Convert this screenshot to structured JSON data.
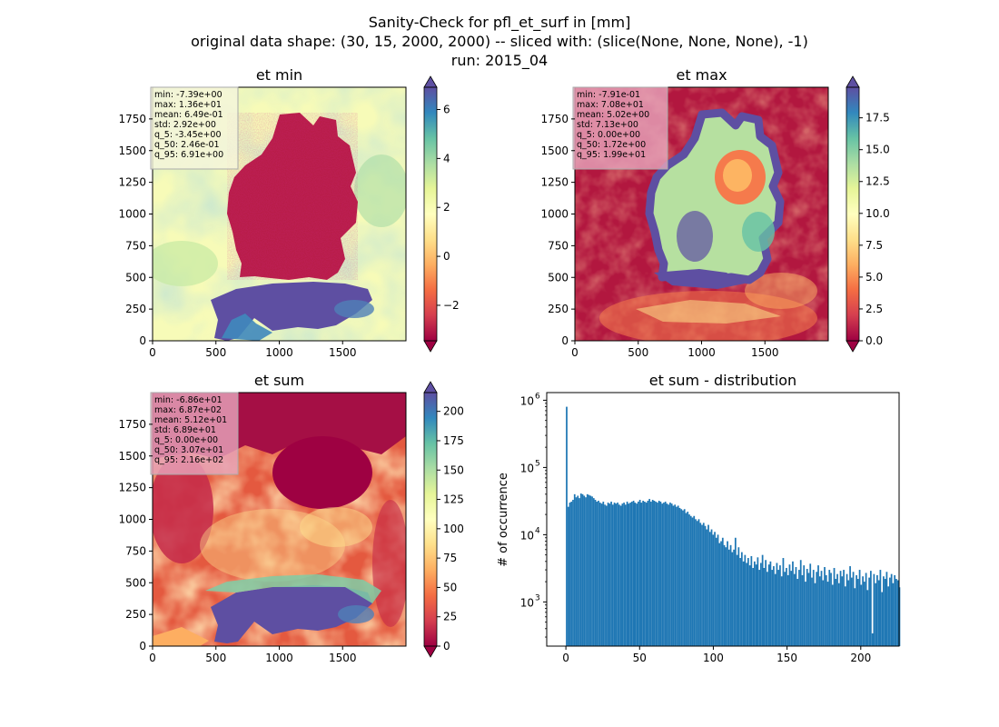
{
  "figure": {
    "title_lines": [
      "Sanity-Check for pfl_et_surf in [mm]",
      "original data shape: (30, 15, 2000, 2000) -- sliced with: (slice(None, None, None), -1)",
      "run: 2015_04"
    ]
  },
  "chart_data": [
    {
      "type": "heatmap",
      "title": "et min",
      "xlim": [
        0,
        2000
      ],
      "ylim": [
        0,
        2000
      ],
      "xticks": [
        0,
        500,
        1000,
        1500
      ],
      "yticks": [
        0,
        250,
        500,
        750,
        1000,
        1250,
        1500,
        1750
      ],
      "colormap": "Spectral",
      "vmin": -3.45,
      "vmax": 6.91,
      "colorbar_ticks": [
        "−2",
        "0",
        "2",
        "4",
        "6"
      ],
      "colorbar_tick_values": [
        -2,
        0,
        2,
        4,
        6
      ],
      "stats": [
        "min: -7.39e+00",
        "max: 1.36e+01",
        "mean: 6.49e-01",
        "std: 2.92e+00",
        "q_5: -3.45e+00",
        "q_50: 2.46e-01",
        "q_95: 6.91e+00"
      ],
      "stats_box_color": "#f5f5dc"
    },
    {
      "type": "heatmap",
      "title": "et max",
      "xlim": [
        0,
        2000
      ],
      "ylim": [
        0,
        2000
      ],
      "xticks": [
        0,
        500,
        1000,
        1500
      ],
      "yticks": [
        0,
        250,
        500,
        750,
        1000,
        1250,
        1500,
        1750
      ],
      "colormap": "Spectral",
      "vmin": 0.0,
      "vmax": 19.9,
      "colorbar_ticks": [
        "0.0",
        "2.5",
        "5.0",
        "7.5",
        "10.0",
        "12.5",
        "15.0",
        "17.5"
      ],
      "colorbar_tick_values": [
        0,
        2.5,
        5,
        7.5,
        10,
        12.5,
        15,
        17.5
      ],
      "stats": [
        "min: -7.91e-01",
        "max: 7.08e+01",
        "mean: 5.02e+00",
        "std: 7.13e+00",
        "q_5: 0.00e+00",
        "q_50: 1.72e+00",
        "q_95: 1.99e+01"
      ],
      "stats_box_color": "#e7a6bd"
    },
    {
      "type": "heatmap",
      "title": "et sum",
      "xlim": [
        0,
        2000
      ],
      "ylim": [
        0,
        2000
      ],
      "xticks": [
        0,
        500,
        1000,
        1500
      ],
      "yticks": [
        0,
        250,
        500,
        750,
        1000,
        1250,
        1500,
        1750
      ],
      "colormap": "Spectral",
      "vmin": 0.0,
      "vmax": 216,
      "colorbar_ticks": [
        "0",
        "25",
        "50",
        "75",
        "100",
        "125",
        "150",
        "175",
        "200"
      ],
      "colorbar_tick_values": [
        0,
        25,
        50,
        75,
        100,
        125,
        150,
        175,
        200
      ],
      "stats": [
        "min: -6.86e+01",
        "max: 6.87e+02",
        "mean: 5.12e+01",
        "std: 6.89e+01",
        "q_5: 0.00e+00",
        "q_50: 3.07e+01",
        "q_95: 2.16e+02"
      ],
      "stats_box_color": "#e7a6bd"
    },
    {
      "type": "bar",
      "title": "et sum - distribution",
      "ylabel": "# of occurrence",
      "yscale": "log",
      "xlim": [
        -13,
        226
      ],
      "ylim": [
        220,
        1300000
      ],
      "xticks": [
        0,
        50,
        100,
        150,
        200
      ],
      "yticks": [
        1000,
        10000,
        100000,
        1000000
      ],
      "ytick_labels": [
        "10",
        "10",
        "10",
        "10"
      ],
      "ytick_exponents": [
        "3",
        "4",
        "5",
        "6"
      ],
      "bar_color": "#1f77b4",
      "bin_width": 1.08,
      "x_start": 0,
      "values": [
        800000,
        26000,
        30000,
        31000,
        33000,
        40000,
        36000,
        38000,
        35000,
        41000,
        40000,
        38000,
        36000,
        40000,
        39000,
        38000,
        37000,
        35000,
        33000,
        31000,
        32000,
        30000,
        29000,
        31000,
        28000,
        27000,
        30000,
        29000,
        31000,
        28000,
        30000,
        29000,
        30000,
        28000,
        27000,
        29000,
        30000,
        28000,
        31000,
        29000,
        30000,
        31000,
        32000,
        30000,
        29000,
        31000,
        33000,
        30000,
        32000,
        31000,
        30000,
        32000,
        34000,
        31000,
        33000,
        32000,
        31000,
        30000,
        32000,
        31000,
        29000,
        30000,
        31000,
        29000,
        28000,
        30000,
        29000,
        27000,
        28000,
        26000,
        27000,
        25000,
        24000,
        23000,
        24000,
        21000,
        22000,
        20000,
        19000,
        18000,
        19000,
        17000,
        16000,
        17000,
        15000,
        14000,
        15000,
        13500,
        12000,
        14000,
        11000,
        12000,
        10000,
        11000,
        9000,
        10000,
        7500,
        8000,
        9000,
        7000,
        6500,
        8000,
        6000,
        7000,
        5500,
        6000,
        9000,
        5000,
        6500,
        4500,
        5500,
        4000,
        5000,
        3800,
        4500,
        3500,
        4800,
        3200,
        4000,
        3600,
        4600,
        3000,
        3800,
        5000,
        3200,
        4200,
        2800,
        3600,
        4000,
        3000,
        3400,
        2600,
        3800,
        3000,
        3500,
        2400,
        4500,
        2800,
        3200,
        2500,
        3600,
        2900,
        4000,
        2600,
        3300,
        2200,
        3000,
        4200,
        2500,
        3500,
        2000,
        3100,
        2700,
        3700,
        2300,
        3000,
        1900,
        2800,
        3500,
        2400,
        2900,
        2100,
        3300,
        2500,
        2000,
        3000,
        2700,
        1800,
        3200,
        2200,
        2600,
        1900,
        2900,
        2400,
        3000,
        1700,
        2600,
        2100,
        3400,
        2300,
        2800,
        1600,
        2500,
        2200,
        3000,
        1800,
        2400,
        2000,
        2700,
        1500,
        2300,
        2900,
        340,
        2600,
        1900,
        2500,
        2100,
        3000,
        1400,
        2400,
        2200,
        2800,
        1700,
        2300,
        2600,
        1900,
        2500,
        2200,
        2100,
        1650
      ]
    }
  ]
}
